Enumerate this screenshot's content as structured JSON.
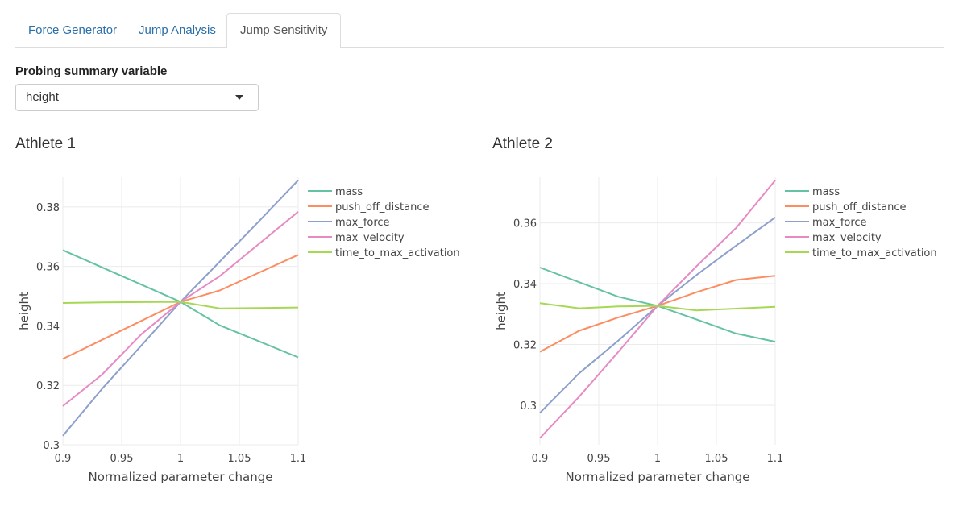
{
  "tabs": [
    {
      "label": "Force Generator",
      "active": false
    },
    {
      "label": "Jump Analysis",
      "active": false
    },
    {
      "label": "Jump Sensitivity",
      "active": true
    }
  ],
  "control": {
    "label": "Probing summary variable",
    "value": "height"
  },
  "chart_data": [
    {
      "type": "line",
      "title": "Athlete 1",
      "xlabel": "Normalized parameter change",
      "ylabel": "height",
      "xlim": [
        0.9,
        1.1
      ],
      "ylim": [
        0.3,
        0.39
      ],
      "xticks": [
        "0.9",
        "0.95",
        "1",
        "1.05",
        "1.1"
      ],
      "xtick_values": [
        0.9,
        0.95,
        1,
        1.05,
        1.1
      ],
      "yticks": [
        "0.3",
        "0.32",
        "0.34",
        "0.36",
        "0.38"
      ],
      "ytick_values": [
        0.3,
        0.32,
        0.34,
        0.36,
        0.38
      ],
      "grid": true,
      "legend_position": "right",
      "x": [
        0.9,
        0.9333,
        0.9667,
        1.0,
        1.0333,
        1.0667,
        1.1
      ],
      "series": [
        {
          "name": "mass",
          "color": "#66c2a5",
          "values": [
            0.3655,
            0.3597,
            0.3539,
            0.3481,
            0.3402,
            0.3348,
            0.3294
          ]
        },
        {
          "name": "push_off_distance",
          "color": "#fc8d62",
          "values": [
            0.3289,
            0.3353,
            0.3417,
            0.3481,
            0.3519,
            0.3579,
            0.3639
          ]
        },
        {
          "name": "max_force",
          "color": "#8da0cb",
          "values": [
            0.303,
            0.3188,
            0.3334,
            0.3481,
            0.3616,
            0.3752,
            0.389
          ]
        },
        {
          "name": "max_velocity",
          "color": "#e78ac3",
          "values": [
            0.313,
            0.3236,
            0.3372,
            0.3481,
            0.3567,
            0.3676,
            0.3784
          ]
        },
        {
          "name": "time_to_max_activation",
          "color": "#a6d854",
          "values": [
            0.3477,
            0.3479,
            0.348,
            0.3481,
            0.3459,
            0.346,
            0.3462
          ]
        }
      ]
    },
    {
      "type": "line",
      "title": "Athlete 2",
      "xlabel": "Normalized parameter change",
      "ylabel": "height",
      "xlim": [
        0.9,
        1.1
      ],
      "ylim": [
        0.287,
        0.375
      ],
      "xticks": [
        "0.9",
        "0.95",
        "1",
        "1.05",
        "1.1"
      ],
      "xtick_values": [
        0.9,
        0.95,
        1,
        1.05,
        1.1
      ],
      "yticks": [
        "0.3",
        "0.32",
        "0.34",
        "0.36"
      ],
      "ytick_values": [
        0.3,
        0.32,
        0.34,
        0.36
      ],
      "grid": true,
      "legend_position": "right",
      "x": [
        0.9,
        0.9333,
        0.9667,
        1.0,
        1.0333,
        1.0667,
        1.1
      ],
      "series": [
        {
          "name": "mass",
          "color": "#66c2a5",
          "values": [
            0.3453,
            0.3405,
            0.3357,
            0.3327,
            0.3282,
            0.3236,
            0.3209
          ]
        },
        {
          "name": "push_off_distance",
          "color": "#fc8d62",
          "values": [
            0.3176,
            0.3245,
            0.3289,
            0.3327,
            0.3372,
            0.3412,
            0.3426
          ]
        },
        {
          "name": "max_force",
          "color": "#8da0cb",
          "values": [
            0.2975,
            0.3105,
            0.3213,
            0.3327,
            0.3429,
            0.3525,
            0.3618
          ]
        },
        {
          "name": "max_velocity",
          "color": "#e78ac3",
          "values": [
            0.2892,
            0.3028,
            0.3176,
            0.3327,
            0.3458,
            0.3583,
            0.374
          ]
        },
        {
          "name": "time_to_max_activation",
          "color": "#a6d854",
          "values": [
            0.3336,
            0.3319,
            0.3325,
            0.3327,
            0.3312,
            0.3318,
            0.3324
          ]
        }
      ]
    }
  ]
}
